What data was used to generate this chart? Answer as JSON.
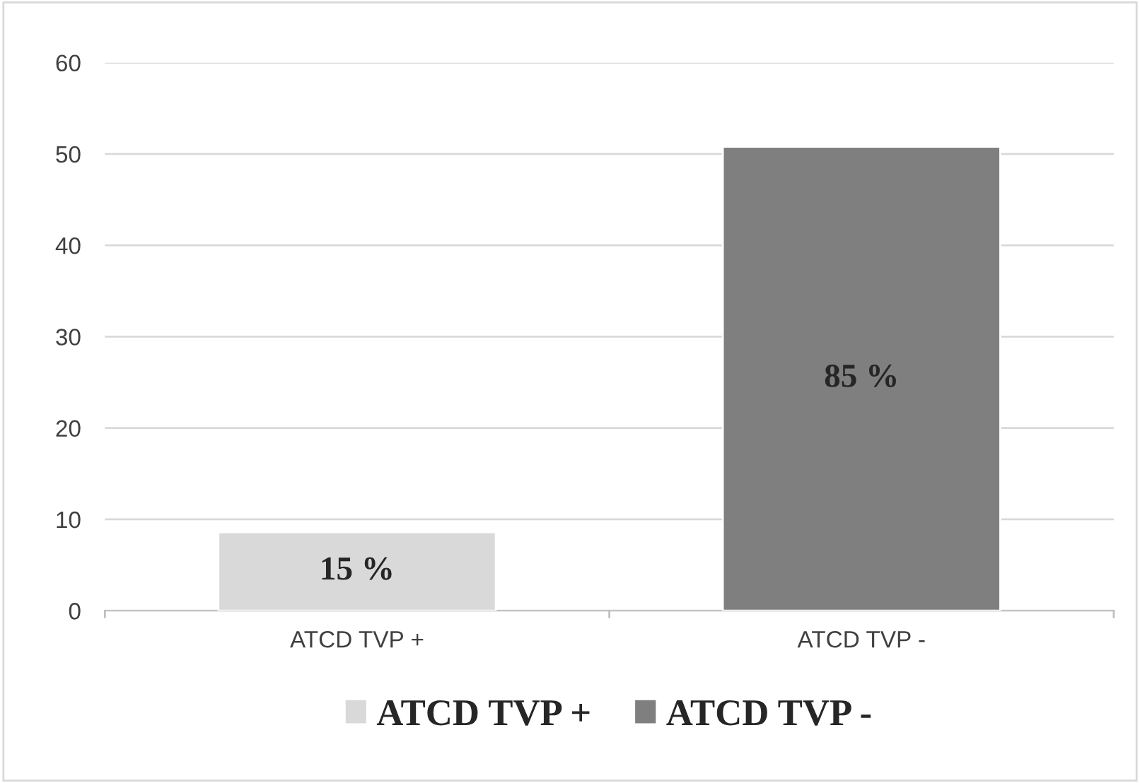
{
  "chart_data": {
    "type": "bar",
    "categories": [
      "ATCD TVP +",
      "ATCD TVP -"
    ],
    "series": [
      {
        "name": "ATCD TVP +",
        "color": "#d9d9d9",
        "values": [
          8.6,
          null
        ]
      },
      {
        "name": "ATCD TVP -",
        "color": "#7f7f7f",
        "values": [
          null,
          50.8
        ]
      }
    ],
    "annotations": [
      "15 %",
      "85 %"
    ],
    "ylim": [
      0,
      60
    ],
    "yticks": [
      0,
      10,
      20,
      30,
      40,
      50,
      60
    ],
    "grid": "y",
    "legend": "bottom"
  }
}
